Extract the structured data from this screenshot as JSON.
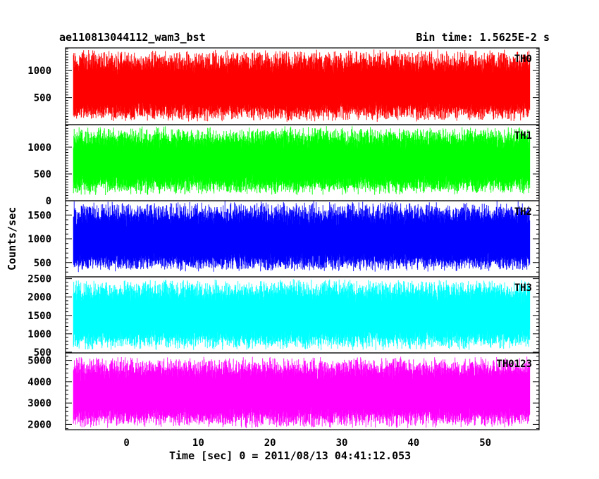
{
  "chart_data": {
    "type": "line",
    "title_left": "ae110813044112_wam3_bst",
    "title_right": "Bin time: 1.5625E-2 s",
    "xlabel": "Time [sec] 0 = 2011/08/13 04:41:12.053",
    "ylabel": "Counts/sec",
    "xlim": [
      -8.5,
      57.5
    ],
    "x_ticks": [
      0,
      10,
      20,
      30,
      40,
      50
    ],
    "data_x_range": [
      -7.4,
      56.2
    ],
    "panels": [
      {
        "name": "TH0",
        "color": "#ff0000",
        "ylim": [
          0,
          1420
        ],
        "y_ticks": [
          500,
          1000
        ],
        "value_range": [
          50,
          1400
        ],
        "mean": 650
      },
      {
        "name": "TH1",
        "color": "#00ff00",
        "ylim": [
          0,
          1420
        ],
        "y_ticks": [
          0,
          500,
          1000
        ],
        "value_range": [
          100,
          1400
        ],
        "mean": 700
      },
      {
        "name": "TH2",
        "color": "#0000ff",
        "ylim": [
          200,
          1800
        ],
        "y_ticks": [
          500,
          1000,
          1500
        ],
        "value_range": [
          300,
          1800
        ],
        "mean": 950
      },
      {
        "name": "TH3",
        "color": "#00ffff",
        "ylim": [
          480,
          2550
        ],
        "y_ticks": [
          500,
          1000,
          1500,
          2000,
          2500
        ],
        "value_range": [
          550,
          2500
        ],
        "mean": 1450
      },
      {
        "name": "TH0123",
        "color": "#ff00ff",
        "ylim": [
          1750,
          5350
        ],
        "y_ticks": [
          2000,
          3000,
          4000,
          5000
        ],
        "value_range": [
          1800,
          5200
        ],
        "mean": 3400
      }
    ]
  }
}
